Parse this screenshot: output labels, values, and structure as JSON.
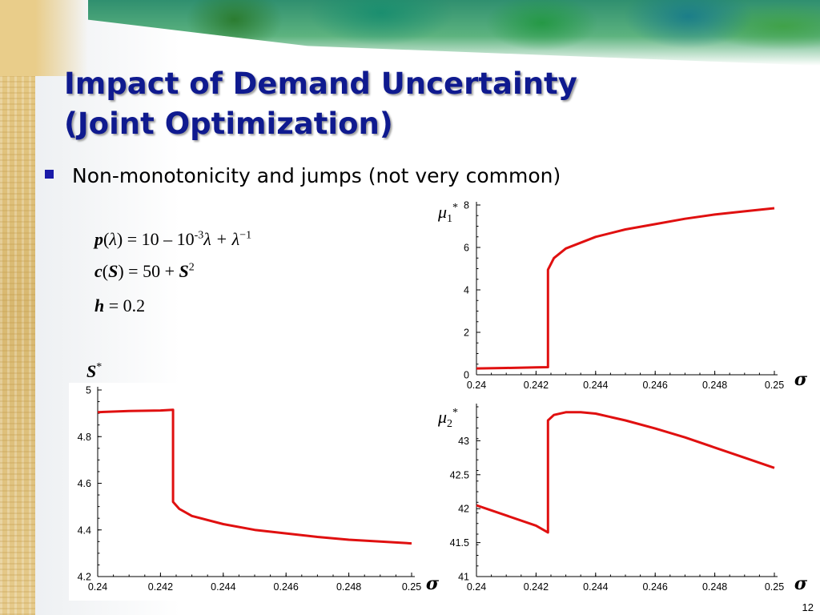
{
  "slide": {
    "title_line1": "Impact of Demand Uncertainty",
    "title_line2": "(Joint Optimization)",
    "bullet": "Non-monotonicity and jumps (not very common)",
    "page_number": "12"
  },
  "formulas": {
    "f1": {
      "lhs": "p",
      "arg": "λ",
      "rest_a": " = 10 – 10",
      "exp1": "-3",
      "rest_b": "λ + λ",
      "exp2": "−1"
    },
    "f2": {
      "lhs": "c",
      "arg": "S",
      "rest": " = 50 + ",
      "var": "S",
      "exp": "2"
    },
    "f3": {
      "lhs": "h",
      "rest": " = 0.2"
    }
  },
  "colors": {
    "title": "#0f1a8f",
    "curve": "#e01010"
  },
  "chart_data": [
    {
      "type": "line",
      "ylabel": "μ1*",
      "xlabel": "σ",
      "xlim": [
        0.24,
        0.25
      ],
      "ylim": [
        0,
        8
      ],
      "x_ticks": [
        "0.24",
        "0.242",
        "0.244",
        "0.246",
        "0.248",
        "0.25"
      ],
      "y_ticks": [
        "0",
        "2",
        "4",
        "6",
        "8"
      ],
      "series": [
        {
          "x": [
            0.24,
            0.241,
            0.242,
            0.2424,
            0.2424,
            0.2426,
            0.243,
            0.244,
            0.245,
            0.246,
            0.247,
            0.248,
            0.249,
            0.25
          ],
          "y": [
            0.3,
            0.32,
            0.35,
            0.36,
            4.95,
            5.5,
            5.95,
            6.5,
            6.85,
            7.1,
            7.35,
            7.55,
            7.7,
            7.85
          ]
        }
      ]
    },
    {
      "type": "line",
      "ylabel": "S*",
      "xlabel": "σ",
      "xlim": [
        0.24,
        0.25
      ],
      "ylim": [
        4.2,
        5
      ],
      "x_ticks": [
        "0.24",
        "0.242",
        "0.244",
        "0.246",
        "0.248",
        "0.25"
      ],
      "y_ticks": [
        "4.2",
        "4.4",
        "4.6",
        "4.8",
        "5"
      ],
      "series": [
        {
          "x": [
            0.24,
            0.241,
            0.242,
            0.2424,
            0.2424,
            0.2426,
            0.243,
            0.244,
            0.245,
            0.246,
            0.247,
            0.248,
            0.249,
            0.25
          ],
          "y": [
            4.905,
            4.91,
            4.912,
            4.915,
            4.52,
            4.49,
            4.46,
            4.425,
            4.4,
            4.385,
            4.37,
            4.358,
            4.35,
            4.342
          ]
        }
      ]
    },
    {
      "type": "line",
      "ylabel": "μ2*",
      "xlabel": "σ",
      "xlim": [
        0.24,
        0.25
      ],
      "ylim": [
        41,
        43.5
      ],
      "x_ticks": [
        "0.24",
        "0.242",
        "0.244",
        "0.246",
        "0.248",
        "0.25"
      ],
      "y_ticks": [
        "41",
        "41.5",
        "42",
        "42.5",
        "43"
      ],
      "series": [
        {
          "x": [
            0.24,
            0.241,
            0.242,
            0.2424,
            0.2424,
            0.2426,
            0.243,
            0.2435,
            0.244,
            0.245,
            0.246,
            0.247,
            0.248,
            0.249,
            0.25
          ],
          "y": [
            42.05,
            41.9,
            41.75,
            41.65,
            43.3,
            43.38,
            43.42,
            43.42,
            43.4,
            43.3,
            43.18,
            43.05,
            42.9,
            42.75,
            42.6
          ]
        }
      ]
    }
  ]
}
